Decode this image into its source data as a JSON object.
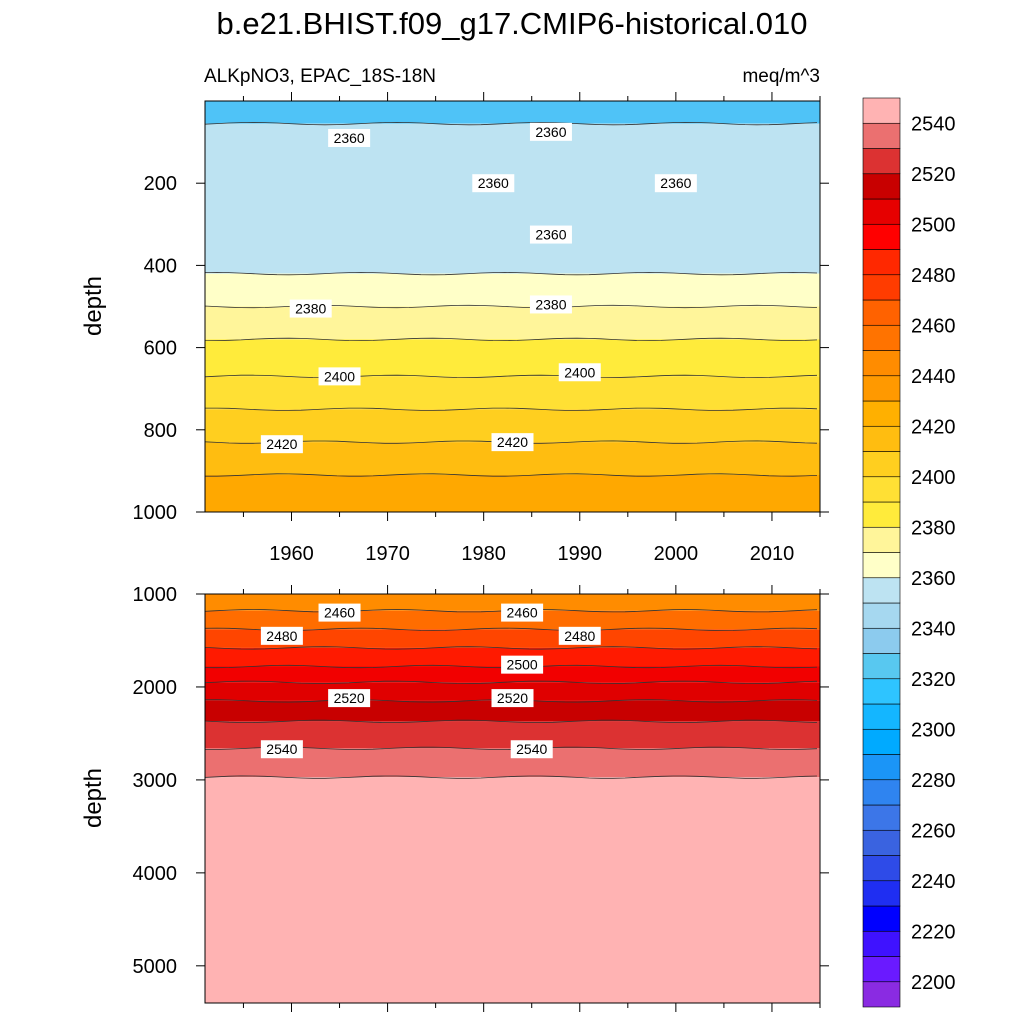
{
  "title": "b.e21.BHIST.f09_g17.CMIP6-historical.010",
  "chart_data": {
    "type": "contour",
    "left_subtitle": "ALKpNO3, EPAC_18S-18N",
    "right_subtitle": "meq/m^3",
    "time_range": [
      1951,
      2015
    ],
    "x_ticks": [
      1960,
      1970,
      1980,
      1990,
      2000,
      2010
    ],
    "x_tick_labels": [
      "1960",
      "1970",
      "1980",
      "1990",
      "2000",
      "2010"
    ],
    "upper_panel": {
      "ylabel": "depth",
      "ylim": [
        0,
        1000
      ],
      "y_ticks": [
        200,
        400,
        600,
        800,
        1000
      ],
      "y_tick_labels": [
        "200",
        "400",
        "600",
        "800",
        "1000"
      ],
      "bands": [
        {
          "top": 0,
          "bottom": 55,
          "color": "#4fc3f7"
        },
        {
          "top": 55,
          "bottom": 420,
          "color": "#bde3f2"
        },
        {
          "top": 420,
          "bottom": 500,
          "color": "#ffffc8"
        },
        {
          "top": 500,
          "bottom": 580,
          "color": "#fff59a"
        },
        {
          "top": 580,
          "bottom": 670,
          "color": "#ffeb3b"
        },
        {
          "top": 670,
          "bottom": 750,
          "color": "#ffe034"
        },
        {
          "top": 750,
          "bottom": 830,
          "color": "#ffcf1f"
        },
        {
          "top": 830,
          "bottom": 910,
          "color": "#ffbd10"
        },
        {
          "top": 910,
          "bottom": 1000,
          "color": "#ffa800"
        }
      ],
      "contour_labels": [
        {
          "text": "2360",
          "year": 1966,
          "depth": 90
        },
        {
          "text": "2360",
          "year": 1987,
          "depth": 75
        },
        {
          "text": "2360",
          "year": 1981,
          "depth": 200
        },
        {
          "text": "2360",
          "year": 2000,
          "depth": 200
        },
        {
          "text": "2360",
          "year": 1987,
          "depth": 325
        },
        {
          "text": "2380",
          "year": 1962,
          "depth": 505
        },
        {
          "text": "2380",
          "year": 1987,
          "depth": 495
        },
        {
          "text": "2400",
          "year": 1965,
          "depth": 670
        },
        {
          "text": "2400",
          "year": 1990,
          "depth": 660
        },
        {
          "text": "2420",
          "year": 1959,
          "depth": 835
        },
        {
          "text": "2420",
          "year": 1983,
          "depth": 830
        }
      ]
    },
    "lower_panel": {
      "ylabel": "depth",
      "ylim": [
        1000,
        5400
      ],
      "y_ticks": [
        1000,
        2000,
        3000,
        4000,
        5000
      ],
      "y_tick_labels": [
        "1000",
        "2000",
        "3000",
        "4000",
        "5000"
      ],
      "bands": [
        {
          "top": 1000,
          "bottom": 1180,
          "color": "#ff8c00"
        },
        {
          "top": 1180,
          "bottom": 1380,
          "color": "#ff6d00"
        },
        {
          "top": 1380,
          "bottom": 1580,
          "color": "#ff4500"
        },
        {
          "top": 1580,
          "bottom": 1780,
          "color": "#ff1a00"
        },
        {
          "top": 1780,
          "bottom": 1950,
          "color": "#f20000"
        },
        {
          "top": 1950,
          "bottom": 2150,
          "color": "#e00000"
        },
        {
          "top": 2150,
          "bottom": 2370,
          "color": "#c80000"
        },
        {
          "top": 2370,
          "bottom": 2660,
          "color": "#dc3232"
        },
        {
          "top": 2660,
          "bottom": 2970,
          "color": "#eb7070"
        },
        {
          "top": 2970,
          "bottom": 5400,
          "color": "#ffb3b3"
        }
      ],
      "contour_labels": [
        {
          "text": "2460",
          "year": 1965,
          "depth": 1200
        },
        {
          "text": "2460",
          "year": 1984,
          "depth": 1200
        },
        {
          "text": "2480",
          "year": 1959,
          "depth": 1450
        },
        {
          "text": "2480",
          "year": 1990,
          "depth": 1450
        },
        {
          "text": "2500",
          "year": 1984,
          "depth": 1760
        },
        {
          "text": "2520",
          "year": 1966,
          "depth": 2120
        },
        {
          "text": "2520",
          "year": 1983,
          "depth": 2120
        },
        {
          "text": "2540",
          "year": 1959,
          "depth": 2670
        },
        {
          "text": "2540",
          "year": 1985,
          "depth": 2670
        }
      ]
    },
    "colorbar": {
      "levels": [
        2200,
        2210,
        2220,
        2230,
        2240,
        2250,
        2260,
        2270,
        2280,
        2290,
        2300,
        2310,
        2320,
        2330,
        2340,
        2350,
        2360,
        2370,
        2380,
        2390,
        2400,
        2410,
        2420,
        2430,
        2440,
        2450,
        2460,
        2470,
        2480,
        2490,
        2500,
        2510,
        2520,
        2530,
        2540,
        2550
      ],
      "labels": [
        "2200",
        "2220",
        "2240",
        "2260",
        "2280",
        "2300",
        "2320",
        "2340",
        "2360",
        "2380",
        "2400",
        "2420",
        "2440",
        "2460",
        "2480",
        "2500",
        "2520",
        "2540"
      ],
      "colors": [
        "#8a2be2",
        "#6a1aff",
        "#3f12ff",
        "#0000ff",
        "#1f2ef2",
        "#2e4be8",
        "#3a63e0",
        "#3c76e8",
        "#2f84f0",
        "#1b95f7",
        "#00aaff",
        "#14b6ff",
        "#2ec4ff",
        "#58c8f0",
        "#8ccbee",
        "#a6d8f0",
        "#bde3f2",
        "#ffffc8",
        "#fff59a",
        "#ffeb3b",
        "#ffe034",
        "#ffcf1f",
        "#ffbd10",
        "#ffb000",
        "#ff9900",
        "#ff8c00",
        "#ff7300",
        "#ff6200",
        "#ff3c00",
        "#ff2800",
        "#ff0000",
        "#e60000",
        "#c80000",
        "#dc3232",
        "#eb7070",
        "#ffb3b3"
      ]
    }
  }
}
